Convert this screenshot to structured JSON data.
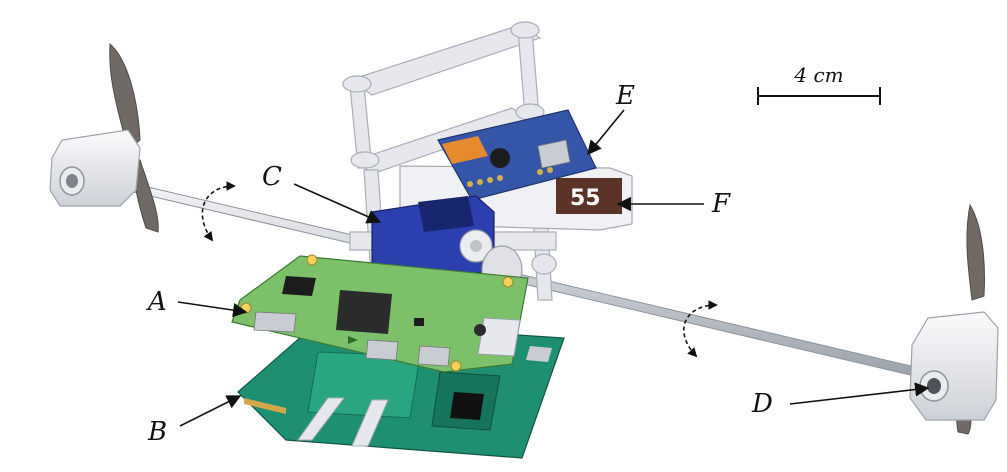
{
  "labels": {
    "a": "A",
    "b": "B",
    "c": "C",
    "d": "D",
    "e": "E",
    "f": "F"
  },
  "scale_bar": {
    "text": "4 cm"
  },
  "module_marking": "55",
  "colors": {
    "frame": "#e6e8ee",
    "rod": "#cfd3da",
    "propeller": "#6f6a66",
    "pi_board": "#7cc06a",
    "main_board": "#1f8f72",
    "servo": "#2b3fae",
    "gps_board": "#3556a8"
  }
}
